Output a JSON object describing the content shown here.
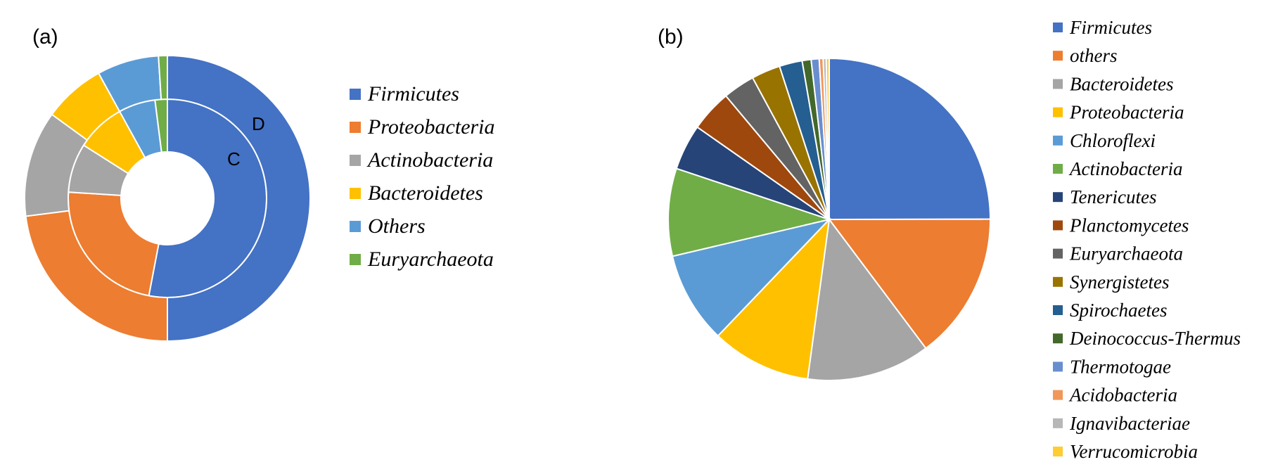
{
  "chart_data": [
    {
      "type": "donut",
      "panel_label": "(a)",
      "rings": [
        {
          "name": "C",
          "values": [
            {
              "label": "Firmicutes",
              "value": 53
            },
            {
              "label": "Proteobacteria",
              "value": 23
            },
            {
              "label": "Actinobacteria",
              "value": 8
            },
            {
              "label": "Bacteroidetes",
              "value": 8
            },
            {
              "label": "Others",
              "value": 6
            },
            {
              "label": "Euryarchaeota",
              "value": 2
            }
          ]
        },
        {
          "name": "D",
          "values": [
            {
              "label": "Firmicutes",
              "value": 50
            },
            {
              "label": "Proteobacteria",
              "value": 23
            },
            {
              "label": "Actinobacteria",
              "value": 12
            },
            {
              "label": "Bacteroidetes",
              "value": 7
            },
            {
              "label": "Others",
              "value": 7
            },
            {
              "label": "Euryarchaeota",
              "value": 1
            }
          ]
        }
      ],
      "legend": [
        {
          "label": "Firmicutes",
          "color": "#4472C4"
        },
        {
          "label": "Proteobacteria",
          "color": "#ED7D31"
        },
        {
          "label": "Actinobacteria",
          "color": "#A5A5A5"
        },
        {
          "label": "Bacteroidetes",
          "color": "#FFC000"
        },
        {
          "label": "Others",
          "color": "#5B9BD5"
        },
        {
          "label": "Euryarchaeota",
          "color": "#70AD47"
        }
      ],
      "legend_placement": "right"
    },
    {
      "type": "pie",
      "panel_label": "(b)",
      "slices": [
        {
          "label": "Firmicutes",
          "value": 25.0,
          "color": "#4472C4"
        },
        {
          "label": "others",
          "value": 14.8,
          "color": "#ED7D31"
        },
        {
          "label": "Bacteroidetes",
          "value": 12.4,
          "color": "#A5A5A5"
        },
        {
          "label": "Proteobacteria",
          "value": 10.0,
          "color": "#FFC000"
        },
        {
          "label": "Chloroflexi",
          "value": 9.2,
          "color": "#5B9BD5"
        },
        {
          "label": "Actinobacteria",
          "value": 8.8,
          "color": "#70AD47"
        },
        {
          "label": "Tenericutes",
          "value": 4.6,
          "color": "#264478"
        },
        {
          "label": "Planctomycetes",
          "value": 4.2,
          "color": "#9E480E"
        },
        {
          "label": "Euryarchaeota",
          "value": 3.2,
          "color": "#636363"
        },
        {
          "label": "Synergistetes",
          "value": 2.9,
          "color": "#997300"
        },
        {
          "label": "Spirochaetes",
          "value": 2.3,
          "color": "#255E91"
        },
        {
          "label": "Deinococcus-Thermus",
          "value": 0.9,
          "color": "#43682B"
        },
        {
          "label": "Thermotogae",
          "value": 0.8,
          "color": "#698ED0"
        },
        {
          "label": "Acidobacteria",
          "value": 0.4,
          "color": "#F1975A"
        },
        {
          "label": "Ignavibacteriae",
          "value": 0.3,
          "color": "#B7B7B7"
        },
        {
          "label": "Verrucomicrobia",
          "value": 0.3,
          "color": "#FFCD33"
        }
      ],
      "legend_placement": "right"
    }
  ]
}
